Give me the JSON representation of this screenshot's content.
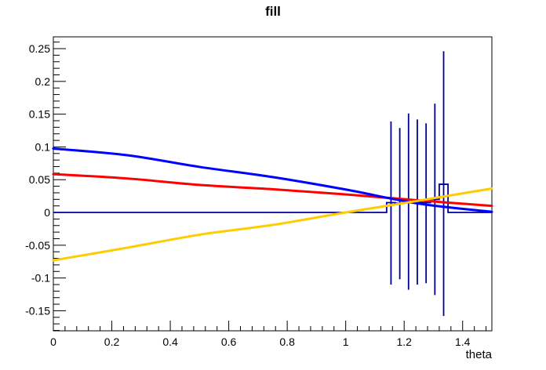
{
  "window": {
    "background": "#ffffff"
  },
  "chart_data": {
    "type": "composite",
    "title": "fill",
    "xlabel": "theta",
    "xlim": [
      0,
      1.5
    ],
    "ylim": [
      -0.1806,
      0.268
    ],
    "grid": false,
    "legend": "none",
    "frame_color": "#000000",
    "x_axis": {
      "major_step": 0.2,
      "minor_step": 0.04,
      "tick_label_values": [
        0,
        0.2,
        0.4,
        0.6,
        0.8,
        1,
        1.2,
        1.4
      ],
      "tick_labels": [
        "0",
        "0.2",
        "0.4",
        "0.6",
        "0.8",
        "1",
        "1.2",
        "1.4"
      ]
    },
    "y_axis": {
      "major_step": 0.05,
      "minor_step": 0.01,
      "tick_label_values": [
        0.25,
        0.2,
        0.15,
        0.1,
        0.05,
        0,
        -0.05,
        -0.1,
        -0.15
      ],
      "tick_labels": [
        "0.25",
        "0.2",
        "0.15",
        "0.1",
        "0.05",
        "0",
        "-0.05",
        "-0.1",
        "-0.15"
      ]
    },
    "histogram": {
      "name": "fill-histogram",
      "color": "#000099",
      "baseline": 0,
      "bin_edges": [
        1.14,
        1.17,
        1.2,
        1.23,
        1.26,
        1.29,
        1.32,
        1.35
      ],
      "contents": [
        0.015,
        0.014,
        0.016,
        0.016,
        0.015,
        0.02,
        0.043
      ],
      "error_bars": {
        "centers": [
          1.155,
          1.185,
          1.215,
          1.245,
          1.275,
          1.305,
          1.335
        ],
        "high": [
          0.139,
          0.129,
          0.151,
          0.142,
          0.136,
          0.166,
          0.246
        ],
        "low": [
          -0.11,
          -0.102,
          -0.118,
          -0.11,
          -0.108,
          -0.126,
          -0.158
        ]
      }
    },
    "functions": [
      {
        "name": "red-curve",
        "color": "#ff0000",
        "x": [
          0,
          0.25,
          0.5,
          0.75,
          1.0,
          1.25,
          1.5
        ],
        "y": [
          0.0585,
          0.052,
          0.042,
          0.0355,
          0.0275,
          0.0185,
          0.01
        ]
      },
      {
        "name": "blue-curve",
        "color": "#0000ff",
        "x": [
          0,
          0.25,
          0.5,
          0.75,
          1.0,
          1.25,
          1.5
        ],
        "y": [
          0.0975,
          0.0875,
          0.0695,
          0.054,
          0.035,
          0.0135,
          0.001
        ]
      },
      {
        "name": "yellow-curve",
        "color": "#ffcc00",
        "x": [
          0,
          0.25,
          0.5,
          0.75,
          1.0,
          1.25,
          1.5
        ],
        "y": [
          -0.073,
          -0.054,
          -0.034,
          -0.019,
          0.0,
          0.018,
          0.0365
        ]
      }
    ]
  }
}
